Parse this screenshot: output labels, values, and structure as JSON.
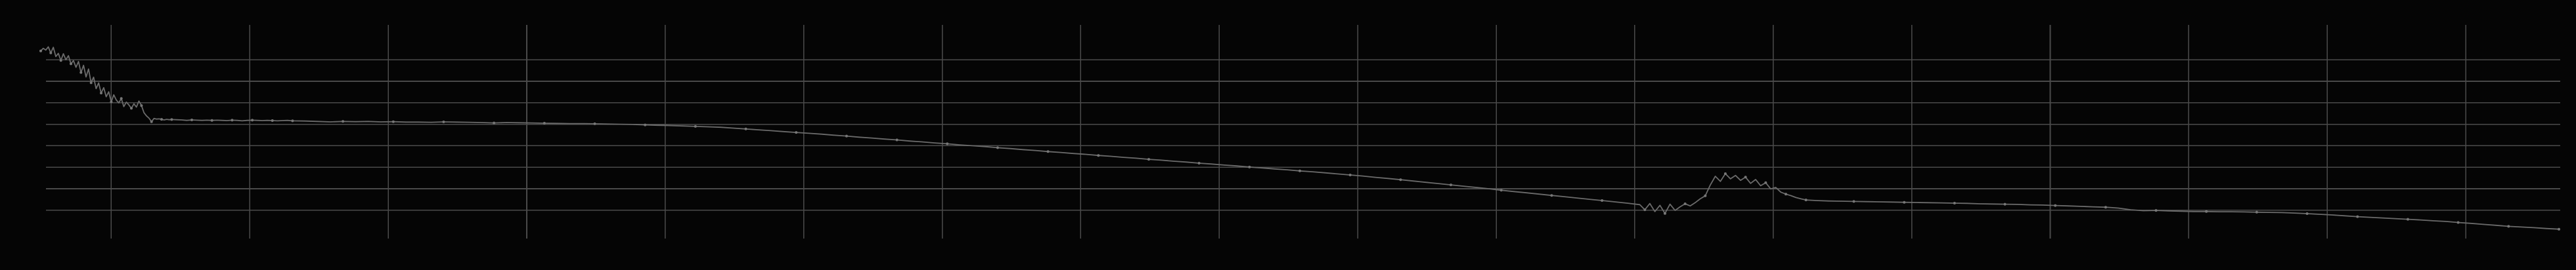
{
  "chart_data": {
    "type": "line",
    "title": "",
    "xlabel": "",
    "ylabel": "",
    "grid": true,
    "legend": "none",
    "xlim": [
      0,
      1000
    ],
    "ylim": [
      0,
      100
    ],
    "x_gridlines": [
      28,
      83,
      138,
      193,
      248,
      303,
      358,
      413,
      468,
      523,
      578,
      633,
      688,
      743,
      798,
      853,
      908,
      963
    ],
    "y_gridlines": [
      15,
      25,
      35,
      45,
      55,
      65,
      75,
      85
    ],
    "colors": {
      "background": "#050505",
      "grid": "#4a4a4a",
      "line": "#6b6b6b",
      "points": "#777777"
    },
    "series": [
      {
        "values": [
          [
            0,
            89.1
          ],
          [
            1,
            90.3
          ],
          [
            2,
            89.5
          ],
          [
            3,
            91.0
          ],
          [
            4,
            88.2
          ],
          [
            5,
            90.8
          ],
          [
            6,
            86.5
          ],
          [
            7,
            88.0
          ],
          [
            8,
            84.7
          ],
          [
            9,
            87.8
          ],
          [
            10,
            85.0
          ],
          [
            11,
            86.9
          ],
          [
            12,
            83.1
          ],
          [
            13,
            84.6
          ],
          [
            14,
            81.5
          ],
          [
            15,
            84.2
          ],
          [
            16,
            79.1
          ],
          [
            17,
            82.4
          ],
          [
            18,
            77.0
          ],
          [
            19,
            80.7
          ],
          [
            20,
            74.3
          ],
          [
            21,
            76.9
          ],
          [
            22,
            71.6
          ],
          [
            23,
            74.2
          ],
          [
            24,
            69.5
          ],
          [
            25,
            72.0
          ],
          [
            26,
            67.8
          ],
          [
            27,
            70.1
          ],
          [
            28,
            65.4
          ],
          [
            29,
            68.7
          ],
          [
            30,
            66.3
          ],
          [
            31,
            64.9
          ],
          [
            32,
            67.0
          ],
          [
            33,
            63.2
          ],
          [
            34,
            65.3
          ],
          [
            35,
            64.0
          ],
          [
            36,
            62.4
          ],
          [
            37,
            64.5
          ],
          [
            38,
            63.0
          ],
          [
            39,
            65.8
          ],
          [
            40,
            63.7
          ],
          [
            41,
            60.4
          ],
          [
            42,
            58.9
          ],
          [
            43,
            57.8
          ],
          [
            44,
            56.2
          ],
          [
            45,
            57.7
          ],
          [
            46,
            57.4
          ],
          [
            47,
            57.5
          ],
          [
            48,
            57.3
          ],
          [
            49,
            57.0
          ],
          [
            50,
            57.3
          ],
          [
            51,
            57.1
          ],
          [
            52,
            57.2
          ],
          [
            54,
            57.1
          ],
          [
            56,
            57.0
          ],
          [
            58,
            56.8
          ],
          [
            60,
            57.0
          ],
          [
            62,
            56.9
          ],
          [
            64,
            56.8
          ],
          [
            66,
            56.9
          ],
          [
            68,
            56.8
          ],
          [
            70,
            56.9
          ],
          [
            72,
            56.8
          ],
          [
            74,
            56.7
          ],
          [
            76,
            56.9
          ],
          [
            78,
            56.8
          ],
          [
            80,
            56.6
          ],
          [
            82,
            56.8
          ],
          [
            84,
            56.9
          ],
          [
            86,
            56.8
          ],
          [
            88,
            56.7
          ],
          [
            90,
            56.8
          ],
          [
            92,
            56.7
          ],
          [
            94,
            56.6
          ],
          [
            96,
            56.7
          ],
          [
            98,
            56.8
          ],
          [
            100,
            56.6
          ],
          [
            105,
            56.5
          ],
          [
            110,
            56.3
          ],
          [
            115,
            56.1
          ],
          [
            120,
            56.3
          ],
          [
            125,
            56.2
          ],
          [
            130,
            56.3
          ],
          [
            135,
            56.1
          ],
          [
            140,
            56.2
          ],
          [
            145,
            56.0
          ],
          [
            150,
            56.0
          ],
          [
            155,
            55.9
          ],
          [
            160,
            56.1
          ],
          [
            165,
            56.0
          ],
          [
            170,
            55.9
          ],
          [
            175,
            55.8
          ],
          [
            180,
            55.6
          ],
          [
            185,
            55.8
          ],
          [
            190,
            55.7
          ],
          [
            195,
            55.6
          ],
          [
            200,
            55.5
          ],
          [
            205,
            55.4
          ],
          [
            210,
            55.3
          ],
          [
            215,
            55.3
          ],
          [
            220,
            55.2
          ],
          [
            225,
            55.1
          ],
          [
            230,
            55.0
          ],
          [
            235,
            54.9
          ],
          [
            240,
            54.7
          ],
          [
            245,
            54.5
          ],
          [
            250,
            54.4
          ],
          [
            255,
            54.2
          ],
          [
            260,
            54.0
          ],
          [
            265,
            53.8
          ],
          [
            270,
            53.6
          ],
          [
            275,
            53.2
          ],
          [
            280,
            52.8
          ],
          [
            285,
            52.4
          ],
          [
            290,
            52.0
          ],
          [
            295,
            51.6
          ],
          [
            300,
            51.2
          ],
          [
            305,
            50.8
          ],
          [
            310,
            50.4
          ],
          [
            315,
            49.9
          ],
          [
            320,
            49.5
          ],
          [
            325,
            49.0
          ],
          [
            330,
            48.6
          ],
          [
            335,
            48.1
          ],
          [
            340,
            47.7
          ],
          [
            345,
            47.2
          ],
          [
            350,
            46.8
          ],
          [
            355,
            46.3
          ],
          [
            360,
            45.9
          ],
          [
            365,
            45.4
          ],
          [
            370,
            45.0
          ],
          [
            375,
            44.6
          ],
          [
            380,
            44.1
          ],
          [
            385,
            43.7
          ],
          [
            390,
            43.2
          ],
          [
            395,
            42.8
          ],
          [
            400,
            42.3
          ],
          [
            405,
            41.9
          ],
          [
            410,
            41.4
          ],
          [
            415,
            41.0
          ],
          [
            420,
            40.5
          ],
          [
            425,
            40.1
          ],
          [
            430,
            39.6
          ],
          [
            435,
            39.2
          ],
          [
            440,
            38.7
          ],
          [
            445,
            38.3
          ],
          [
            450,
            37.8
          ],
          [
            455,
            37.4
          ],
          [
            460,
            36.9
          ],
          [
            465,
            36.5
          ],
          [
            470,
            36.0
          ],
          [
            475,
            35.6
          ],
          [
            480,
            35.1
          ],
          [
            485,
            34.7
          ],
          [
            490,
            34.2
          ],
          [
            495,
            33.8
          ],
          [
            500,
            33.3
          ],
          [
            505,
            32.9
          ],
          [
            510,
            32.4
          ],
          [
            515,
            31.9
          ],
          [
            520,
            31.4
          ],
          [
            525,
            30.9
          ],
          [
            530,
            30.3
          ],
          [
            535,
            29.8
          ],
          [
            540,
            29.2
          ],
          [
            545,
            28.6
          ],
          [
            550,
            28.0
          ],
          [
            555,
            27.4
          ],
          [
            560,
            26.8
          ],
          [
            565,
            26.2
          ],
          [
            570,
            25.6
          ],
          [
            575,
            25.0
          ],
          [
            580,
            24.3
          ],
          [
            585,
            23.7
          ],
          [
            590,
            23.1
          ],
          [
            595,
            22.5
          ],
          [
            600,
            21.9
          ],
          [
            605,
            21.3
          ],
          [
            610,
            20.7
          ],
          [
            615,
            20.1
          ],
          [
            620,
            19.5
          ],
          [
            625,
            18.9
          ],
          [
            630,
            18.3
          ],
          [
            635,
            17.6
          ],
          [
            637,
            15.2
          ],
          [
            639,
            18.1
          ],
          [
            641,
            14.4
          ],
          [
            643,
            17.3
          ],
          [
            645,
            13.5
          ],
          [
            647,
            17.8
          ],
          [
            649,
            14.9
          ],
          [
            651,
            16.6
          ],
          [
            653,
            18.0
          ],
          [
            655,
            17.0
          ],
          [
            657,
            18.5
          ],
          [
            659,
            20.3
          ],
          [
            661,
            21.7
          ],
          [
            663,
            26.7
          ],
          [
            665,
            30.8
          ],
          [
            667,
            28.4
          ],
          [
            669,
            32.0
          ],
          [
            671,
            29.6
          ],
          [
            673,
            31.2
          ],
          [
            675,
            28.9
          ],
          [
            677,
            30.4
          ],
          [
            679,
            27.5
          ],
          [
            681,
            29.3
          ],
          [
            683,
            26.4
          ],
          [
            685,
            27.8
          ],
          [
            687,
            24.9
          ],
          [
            689,
            25.6
          ],
          [
            691,
            23.4
          ],
          [
            693,
            22.5
          ],
          [
            695,
            21.8
          ],
          [
            697,
            20.9
          ],
          [
            699,
            20.3
          ],
          [
            701,
            19.8
          ],
          [
            705,
            19.5
          ],
          [
            710,
            19.3
          ],
          [
            715,
            19.2
          ],
          [
            720,
            19.1
          ],
          [
            725,
            19.0
          ],
          [
            730,
            18.9
          ],
          [
            735,
            18.8
          ],
          [
            740,
            18.7
          ],
          [
            745,
            18.6
          ],
          [
            750,
            18.5
          ],
          [
            755,
            18.4
          ],
          [
            760,
            18.3
          ],
          [
            765,
            18.2
          ],
          [
            770,
            18.0
          ],
          [
            775,
            17.9
          ],
          [
            780,
            17.8
          ],
          [
            785,
            17.7
          ],
          [
            790,
            17.5
          ],
          [
            795,
            17.4
          ],
          [
            800,
            17.2
          ],
          [
            805,
            17.0
          ],
          [
            810,
            16.8
          ],
          [
            815,
            16.6
          ],
          [
            820,
            16.4
          ],
          [
            825,
            16.0
          ],
          [
            830,
            15.2
          ],
          [
            835,
            14.8
          ],
          [
            840,
            14.9
          ],
          [
            845,
            14.7
          ],
          [
            850,
            14.5
          ],
          [
            855,
            14.4
          ],
          [
            860,
            14.4
          ],
          [
            865,
            14.3
          ],
          [
            870,
            14.3
          ],
          [
            875,
            14.2
          ],
          [
            880,
            14.1
          ],
          [
            885,
            14.0
          ],
          [
            890,
            13.9
          ],
          [
            895,
            13.7
          ],
          [
            900,
            13.4
          ],
          [
            905,
            13.1
          ],
          [
            910,
            12.8
          ],
          [
            915,
            12.4
          ],
          [
            920,
            12.0
          ],
          [
            925,
            11.7
          ],
          [
            930,
            11.4
          ],
          [
            935,
            11.1
          ],
          [
            940,
            10.8
          ],
          [
            945,
            10.5
          ],
          [
            950,
            10.1
          ],
          [
            955,
            9.8
          ],
          [
            960,
            9.3
          ],
          [
            965,
            8.9
          ],
          [
            970,
            8.4
          ],
          [
            975,
            8.0
          ],
          [
            980,
            7.5
          ],
          [
            985,
            7.2
          ],
          [
            990,
            6.9
          ],
          [
            995,
            6.5
          ],
          [
            1000,
            6.2
          ]
        ]
      }
    ]
  }
}
